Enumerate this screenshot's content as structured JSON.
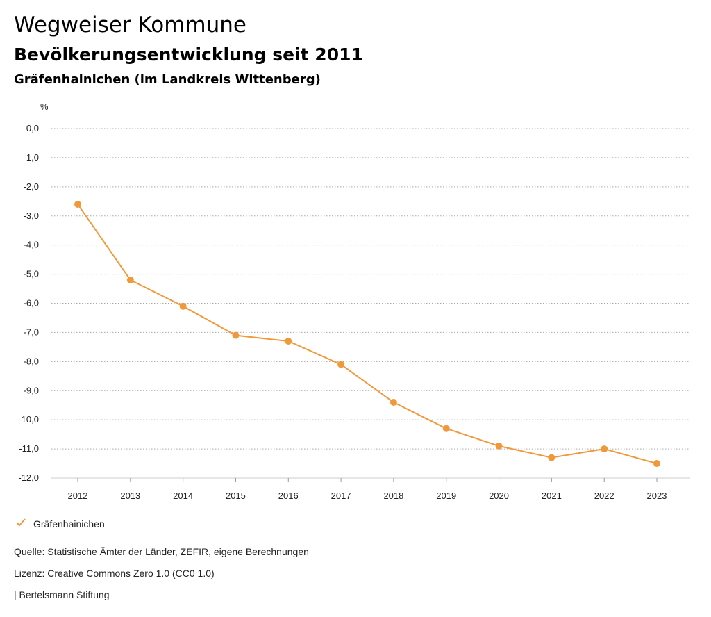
{
  "header": {
    "title": "Wegweiser Kommune",
    "subtitle": "Bevölkerungsentwicklung seit 2011",
    "region": "Gräfenhainichen (im Landkreis Wittenberg)"
  },
  "chart_data": {
    "type": "line",
    "ylabel": "%",
    "x": [
      "2012",
      "2013",
      "2014",
      "2015",
      "2016",
      "2017",
      "2018",
      "2019",
      "2020",
      "2021",
      "2022",
      "2023"
    ],
    "series": [
      {
        "name": "Gräfenhainichen",
        "color": "#f0993a",
        "values": [
          -2.6,
          -5.2,
          -6.1,
          -7.1,
          -7.3,
          -8.1,
          -9.4,
          -10.3,
          -10.9,
          -11.3,
          -11.0,
          -11.5
        ]
      }
    ],
    "ylim": [
      -12,
      0
    ],
    "yticks": [
      0,
      -1,
      -2,
      -3,
      -4,
      -5,
      -6,
      -7,
      -8,
      -9,
      -10,
      -11,
      -12
    ],
    "ytick_labels": [
      "0,0",
      "-1,0",
      "-2,0",
      "-3,0",
      "-4,0",
      "-5,0",
      "-6,0",
      "-7,0",
      "-8,0",
      "-9,0",
      "-10,0",
      "-11,0",
      "-12,0"
    ],
    "grid": true,
    "legend": "bottom-left"
  },
  "legend": {
    "icon": "check-icon",
    "label": "Gräfenhainichen"
  },
  "footer": {
    "source": "Quelle: Statistische Ämter der Länder, ZEFIR, eigene Berechnungen",
    "license": "Lizenz: Creative Commons Zero 1.0 (CC0 1.0)",
    "publisher": "| Bertelsmann Stiftung"
  }
}
